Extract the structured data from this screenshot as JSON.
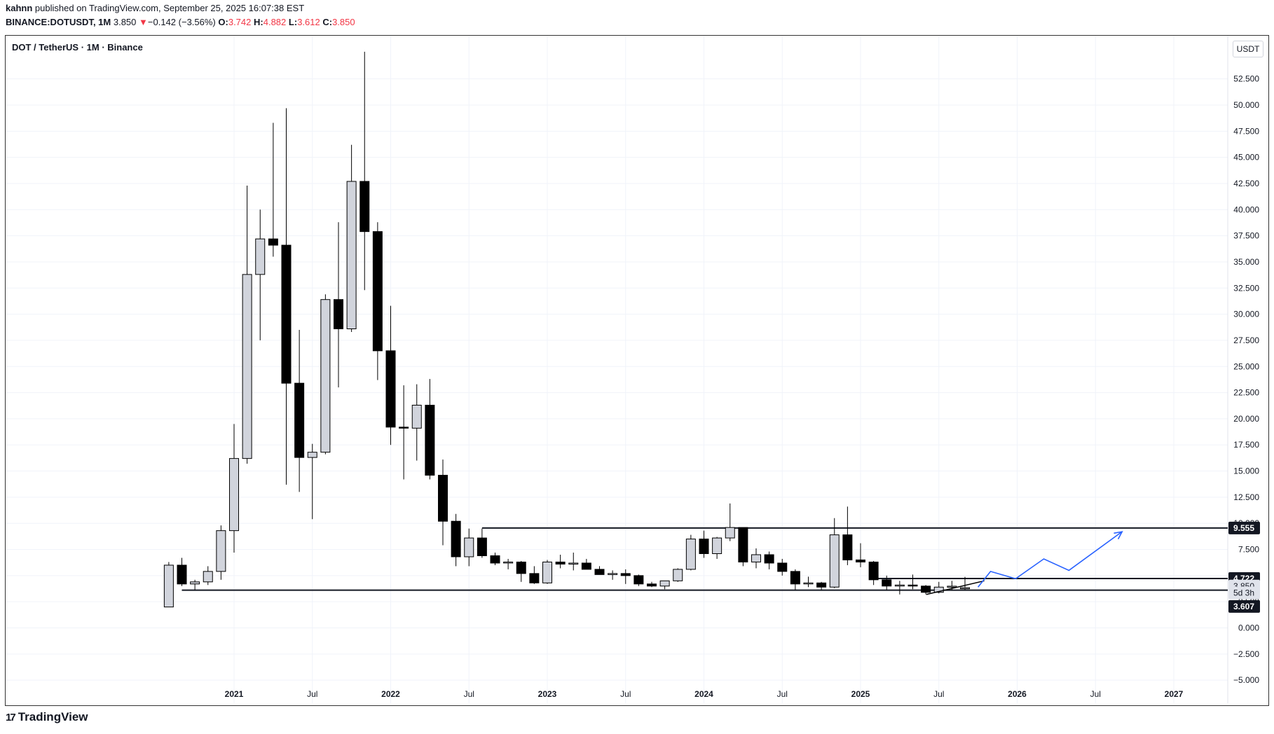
{
  "header": {
    "author": "kahnn",
    "published_text": " published on TradingView.com, September 25, 2025 16:07:38 EST",
    "symbol": "BINANCE:DOTUSDT, 1M",
    "last": "3.850",
    "change_arrow": "▼",
    "change": "−0.142 (−3.56%)",
    "o_label": "O:",
    "o_val": "3.742",
    "h_label": "H:",
    "h_val": "4.882",
    "l_label": "L:",
    "l_val": "3.612",
    "c_label": "C:",
    "c_val": "3.850"
  },
  "pane_title": "DOT / TetherUS · 1M · Binance",
  "currency": "USDT",
  "brand": "TradingView",
  "colors": {
    "up_fill": "#d1d4dc",
    "down_fill": "#000000",
    "projection": "#2962ff",
    "negative": "#f23645"
  },
  "chart_data": {
    "type": "candlestick",
    "title": "DOT / TetherUS · 1M · Binance",
    "ylim": [
      -5,
      55
    ],
    "y_ticks": [
      -5,
      -2.5,
      0,
      2.5,
      5,
      7.5,
      10,
      12.5,
      15,
      17.5,
      20,
      22.5,
      25,
      27.5,
      30,
      32.5,
      35,
      37.5,
      40,
      42.5,
      45,
      47.5,
      50,
      52.5
    ],
    "y_tick_labels": [
      "−5.000",
      "−2.500",
      "0.000",
      "2.500",
      "5.000",
      "7.500",
      "10.000",
      "12.500",
      "15.000",
      "17.500",
      "20.000",
      "22.500",
      "25.000",
      "27.500",
      "30.000",
      "32.500",
      "35.000",
      "37.500",
      "40.000",
      "42.500",
      "45.000",
      "47.500",
      "50.000",
      "52.500"
    ],
    "x_ticks": [
      {
        "label": "2021",
        "t": 2021.0,
        "bold": true
      },
      {
        "label": "Jul",
        "t": 2021.5,
        "bold": false
      },
      {
        "label": "2022",
        "t": 2022.0,
        "bold": true
      },
      {
        "label": "Jul",
        "t": 2022.5,
        "bold": false
      },
      {
        "label": "2023",
        "t": 2023.0,
        "bold": true
      },
      {
        "label": "Jul",
        "t": 2023.5,
        "bold": false
      },
      {
        "label": "2024",
        "t": 2024.0,
        "bold": true
      },
      {
        "label": "Jul",
        "t": 2024.5,
        "bold": false
      },
      {
        "label": "2025",
        "t": 2025.0,
        "bold": true
      },
      {
        "label": "Jul",
        "t": 2025.5,
        "bold": false
      },
      {
        "label": "2026",
        "t": 2026.0,
        "bold": true
      },
      {
        "label": "Jul",
        "t": 2026.5,
        "bold": false
      },
      {
        "label": "2027",
        "t": 2027.0,
        "bold": true
      }
    ],
    "start": "2020-08",
    "candles": [
      [
        2.0,
        6.3,
        2.0,
        6.0
      ],
      [
        6.0,
        6.7,
        4.0,
        4.2
      ],
      [
        4.2,
        4.6,
        3.6,
        4.4
      ],
      [
        4.4,
        5.9,
        4.1,
        5.4
      ],
      [
        5.4,
        9.8,
        4.6,
        9.3
      ],
      [
        9.3,
        19.5,
        7.2,
        16.2
      ],
      [
        16.2,
        42.3,
        15.7,
        33.8
      ],
      [
        33.8,
        40.0,
        27.5,
        37.2
      ],
      [
        37.2,
        48.3,
        35.5,
        36.6
      ],
      [
        36.6,
        49.7,
        13.7,
        23.4
      ],
      [
        23.4,
        28.5,
        13.0,
        16.3
      ],
      [
        16.3,
        17.6,
        10.4,
        16.8
      ],
      [
        16.8,
        31.9,
        16.6,
        31.4
      ],
      [
        31.4,
        38.8,
        23.0,
        28.6
      ],
      [
        28.6,
        46.2,
        28.3,
        42.7
      ],
      [
        42.7,
        55.1,
        32.3,
        37.9
      ],
      [
        37.9,
        38.8,
        23.7,
        26.5
      ],
      [
        26.5,
        30.8,
        17.5,
        19.2
      ],
      [
        19.2,
        23.2,
        14.2,
        19.1
      ],
      [
        19.1,
        23.3,
        16.0,
        21.3
      ],
      [
        21.3,
        23.8,
        14.2,
        14.6
      ],
      [
        14.6,
        16.1,
        7.9,
        10.2
      ],
      [
        10.2,
        10.9,
        5.9,
        6.8
      ],
      [
        6.8,
        9.5,
        5.9,
        8.6
      ],
      [
        8.6,
        9.5,
        6.7,
        6.9
      ],
      [
        6.9,
        7.2,
        6.0,
        6.2
      ],
      [
        6.2,
        6.6,
        5.6,
        6.3
      ],
      [
        6.3,
        6.4,
        4.4,
        5.2
      ],
      [
        5.2,
        5.9,
        4.2,
        4.3
      ],
      [
        4.3,
        6.5,
        4.2,
        6.3
      ],
      [
        6.3,
        7.0,
        5.7,
        6.1
      ],
      [
        6.1,
        7.2,
        5.5,
        6.2
      ],
      [
        6.2,
        6.6,
        5.6,
        5.6
      ],
      [
        5.6,
        5.9,
        5.1,
        5.1
      ],
      [
        5.1,
        5.5,
        4.6,
        5.2
      ],
      [
        5.2,
        5.6,
        4.2,
        5.0
      ],
      [
        5.0,
        5.1,
        4.0,
        4.2
      ],
      [
        4.2,
        4.4,
        3.9,
        4.0
      ],
      [
        4.0,
        4.5,
        3.7,
        4.5
      ],
      [
        4.5,
        5.7,
        4.4,
        5.6
      ],
      [
        5.6,
        8.9,
        5.5,
        8.5
      ],
      [
        8.5,
        9.3,
        6.7,
        7.1
      ],
      [
        7.1,
        8.7,
        6.6,
        8.6
      ],
      [
        8.6,
        11.9,
        8.3,
        9.6
      ],
      [
        9.6,
        9.6,
        5.9,
        6.3
      ],
      [
        6.3,
        7.6,
        5.7,
        7.0
      ],
      [
        7.0,
        7.3,
        5.6,
        6.2
      ],
      [
        6.2,
        6.6,
        5.0,
        5.4
      ],
      [
        5.4,
        5.6,
        3.6,
        4.2
      ],
      [
        4.2,
        4.9,
        3.9,
        4.3
      ],
      [
        4.3,
        4.4,
        3.6,
        3.9
      ],
      [
        3.9,
        10.5,
        3.8,
        8.9
      ],
      [
        8.9,
        11.6,
        6.0,
        6.5
      ],
      [
        6.5,
        8.1,
        5.8,
        6.3
      ],
      [
        6.3,
        6.4,
        4.1,
        4.6
      ],
      [
        4.6,
        5.0,
        3.6,
        4.0
      ],
      [
        4.0,
        4.5,
        3.2,
        4.1
      ],
      [
        4.1,
        5.1,
        3.7,
        4.0
      ],
      [
        4.0,
        4.1,
        3.2,
        3.4
      ],
      [
        3.4,
        4.4,
        3.3,
        3.9
      ],
      [
        3.9,
        4.5,
        3.6,
        3.99
      ],
      [
        3.742,
        4.882,
        3.612,
        3.85
      ]
    ],
    "lines": [
      {
        "name": "range-high",
        "y": 9.555,
        "from": "2022-08"
      },
      {
        "name": "range-low",
        "y": 3.607,
        "from": "2020-09"
      },
      {
        "name": "mid-resistance",
        "y": 4.722,
        "from": "2025-02"
      }
    ],
    "projection": [
      [
        2025.75,
        3.9
      ],
      [
        2025.83,
        5.4
      ],
      [
        2025.99,
        4.7
      ],
      [
        2026.17,
        6.6
      ],
      [
        2026.33,
        5.5
      ],
      [
        2026.67,
        9.2
      ]
    ],
    "trendline": [
      [
        2025.42,
        3.2
      ],
      [
        2025.79,
        4.5
      ]
    ],
    "price_labels": [
      {
        "text": "9.555",
        "y": 9.555,
        "style": "dark"
      },
      {
        "text": "4.722",
        "y": 4.722,
        "style": "dark"
      },
      {
        "text": "3.850",
        "y": 4.0,
        "style": "light"
      },
      {
        "text": "5d 3h",
        "y": 3.35,
        "style": "light"
      },
      {
        "text": "3.607",
        "y": 2.05,
        "style": "dark"
      }
    ]
  }
}
